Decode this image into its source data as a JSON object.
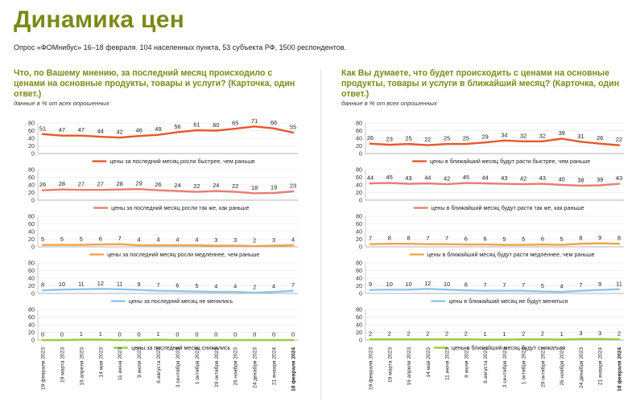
{
  "title": "Динамика цен",
  "subtitle": "Опрос «ФОМнибус» 16–18 февраля. 104 населенных пункта, 53 субъекта РФ, 1500 респондентов.",
  "left_question": "Что, по Вашему мнению, за последний месяц происходило с ценами на основные продукты, товары и услуги? (Карточка, один ответ.)",
  "right_question": "Как Вы думаете, что будет происходить с ценами на основные продукты, товары и услуги в ближайший месяц? (Карточка, один ответ.)",
  "note": "данные в % от всех опрошенных",
  "colors": {
    "accent": "#7a8a17",
    "orange_red": "#e8582a",
    "salmon": "#ec7b72",
    "orange": "#f0a24a",
    "light_blue": "#8fc6ea",
    "green": "#9ccc3c"
  },
  "chart_data": [
    {
      "type": "line",
      "title": "left",
      "ylim": [
        0,
        80
      ],
      "yticks": [
        "0",
        "20",
        "40",
        "60",
        "80"
      ],
      "categories": [
        "19 февраля 2023",
        "19 марта 2023",
        "16 апреля 2023",
        "14 мая 2023",
        "11 июня 2023",
        "9 июля 2023",
        "6 августа 2023",
        "3 сентября 2023",
        "1 октября 2023",
        "29 октября 2023",
        "26 ноября 2023",
        "24 декабря 2023",
        "21 января 2024",
        "18 февраля 2024"
      ],
      "series": [
        {
          "name": "цены за последний месяц росли быстрее, чем раньше",
          "color": "#e8582a",
          "values": [
            51,
            47,
            47,
            44,
            42,
            46,
            49,
            56,
            61,
            60,
            65,
            71,
            66,
            55
          ]
        },
        {
          "name": "цены за последний месяц росли так же, как раньше",
          "color": "#ec7b72",
          "values": [
            26,
            28,
            27,
            27,
            28,
            29,
            26,
            24,
            22,
            24,
            22,
            18,
            19,
            23
          ]
        },
        {
          "name": "цены за последний месяц росли медленнее, чем раньше",
          "color": "#f0a24a",
          "values": [
            5,
            5,
            5,
            6,
            7,
            4,
            4,
            4,
            4,
            3,
            3,
            2,
            3,
            4
          ]
        },
        {
          "name": "цены за последний месяц не менялись",
          "color": "#8fc6ea",
          "values": [
            8,
            10,
            11,
            12,
            11,
            9,
            7,
            6,
            5,
            4,
            4,
            2,
            4,
            7
          ]
        },
        {
          "name": "цены за последний месяц снижались",
          "color": "#9ccc3c",
          "values": [
            0,
            0,
            1,
            1,
            0,
            0,
            1,
            0,
            0,
            0,
            0,
            0,
            0,
            0
          ]
        }
      ]
    },
    {
      "type": "line",
      "title": "right",
      "ylim": [
        0,
        80
      ],
      "yticks": [
        "0",
        "20",
        "40",
        "60",
        "80"
      ],
      "categories": [
        "19 февраля 2023",
        "19 марта 2023",
        "16 апреля 2023",
        "14 мая 2023",
        "11 июня 2023",
        "9 июля 2023",
        "6 августа 2023",
        "3 сентября 2023",
        "1 октября 2023",
        "29 октября 2023",
        "26 ноября 2023",
        "24 декабря 2023",
        "21 января 2024",
        "18 февраля 2024"
      ],
      "series": [
        {
          "name": "цены в ближайший месяц будут расти быстрее, чем раньше",
          "color": "#e8582a",
          "values": [
            26,
            23,
            25,
            22,
            25,
            25,
            29,
            34,
            32,
            32,
            39,
            31,
            26,
            22
          ]
        },
        {
          "name": "цены в ближайший месяц будут расти так же, как раньше",
          "color": "#ec7b72",
          "values": [
            44,
            45,
            43,
            44,
            42,
            45,
            44,
            43,
            42,
            43,
            40,
            38,
            39,
            43
          ]
        },
        {
          "name": "цены в ближайший месяц будут расти медленнее, чем раньше",
          "color": "#f0a24a",
          "values": [
            7,
            8,
            8,
            7,
            7,
            6,
            6,
            5,
            5,
            6,
            5,
            8,
            9,
            8
          ]
        },
        {
          "name": "цены в ближайший месяц не будут меняться",
          "color": "#8fc6ea",
          "values": [
            9,
            10,
            10,
            12,
            10,
            8,
            7,
            7,
            7,
            5,
            4,
            7,
            9,
            11
          ]
        },
        {
          "name": "цены в ближайший месяц будут снижаться",
          "color": "#9ccc3c",
          "values": [
            2,
            2,
            2,
            2,
            2,
            2,
            1,
            1,
            2,
            2,
            1,
            3,
            3,
            2
          ]
        }
      ]
    }
  ]
}
